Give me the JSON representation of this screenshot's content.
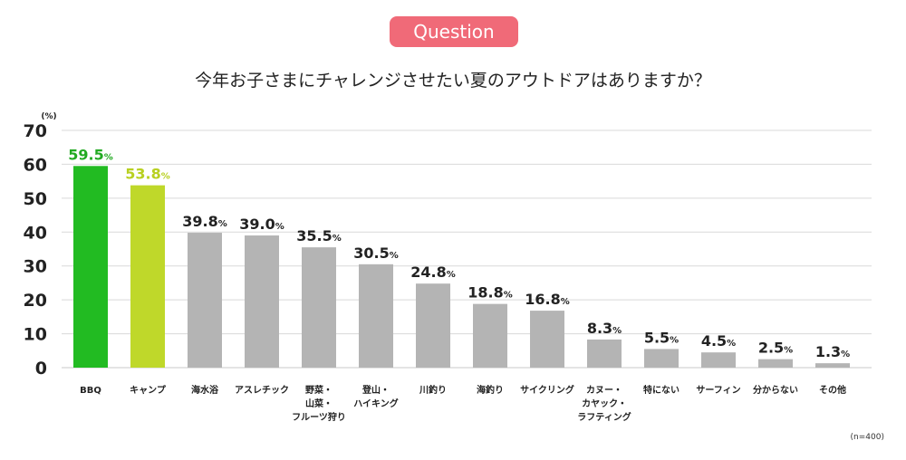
{
  "badge": "Question",
  "footnote": "(n=400)",
  "chart_data": {
    "type": "bar",
    "title": "今年お子さまにチャレンジさせたい夏のアウトドアはありますか？",
    "unit_label": "(%)",
    "value_suffix": "%",
    "ylim": [
      0,
      70
    ],
    "yticks": [
      0,
      10,
      20,
      30,
      40,
      50,
      60,
      70
    ],
    "grid": true,
    "categories": [
      [
        "BBQ"
      ],
      [
        "キャンプ"
      ],
      [
        "海水浴"
      ],
      [
        "アスレチック"
      ],
      [
        "野菜・",
        "山菜・",
        "フルーツ狩り"
      ],
      [
        "登山・",
        "ハイキング"
      ],
      [
        "川釣り"
      ],
      [
        "海釣り"
      ],
      [
        "サイクリング"
      ],
      [
        "カヌー・",
        "カヤック・",
        "ラフティング"
      ],
      [
        "特にない"
      ],
      [
        "サーフィン"
      ],
      [
        "分からない"
      ],
      [
        "その他"
      ]
    ],
    "values": [
      59.5,
      53.8,
      39.8,
      39.0,
      35.5,
      30.5,
      24.8,
      18.8,
      16.8,
      8.3,
      5.5,
      4.5,
      2.5,
      1.3
    ],
    "colors": {
      "first": "#22bb22",
      "second": "#bfd82a",
      "rest": "#b4b4b4",
      "first_label": "#22aa22",
      "second_label": "#b8d020",
      "rest_label": "#222222"
    }
  }
}
